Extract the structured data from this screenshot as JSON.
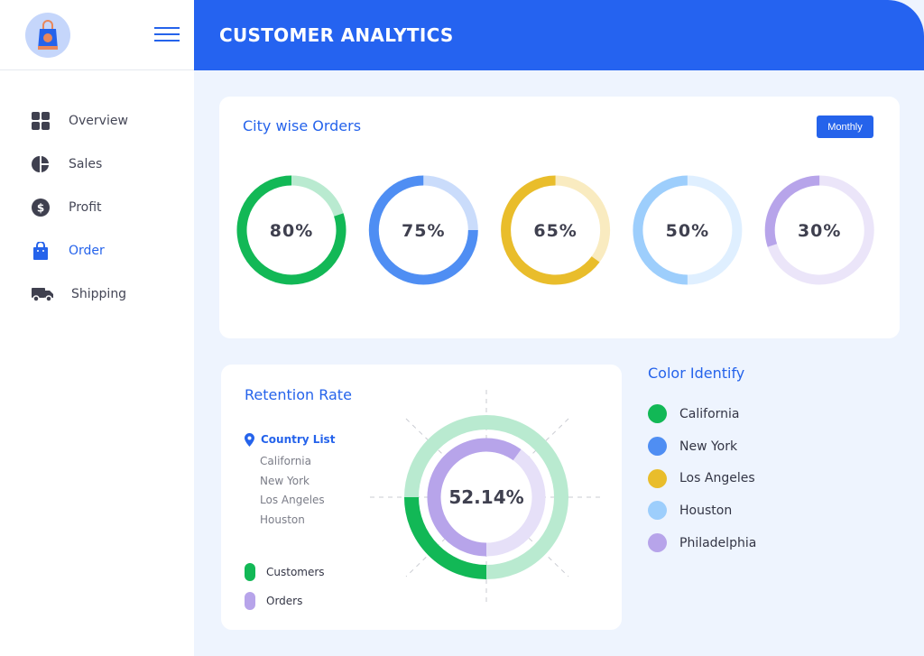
{
  "sidebar": {
    "items": [
      {
        "label": "Overview",
        "icon": "grid-icon"
      },
      {
        "label": "Sales",
        "icon": "pie-chart-icon"
      },
      {
        "label": "Profit",
        "icon": "dollar-icon"
      },
      {
        "label": "Order",
        "icon": "shopping-bag-icon",
        "active": true
      },
      {
        "label": "Shipping",
        "icon": "truck-icon"
      }
    ]
  },
  "header": {
    "title": "CUSTOMER ANALYTICS"
  },
  "city_orders": {
    "title": "City wise Orders",
    "period_button": "Monthly"
  },
  "retention": {
    "title": "Retention Rate",
    "country_list_label": "Country List",
    "countries": [
      "California",
      "New York",
      "Los Angeles",
      "Houston"
    ],
    "center_value": "52.14%",
    "legend": [
      {
        "label": "Customers",
        "color": "#12b856"
      },
      {
        "label": "Orders",
        "color": "#b7a4ea"
      }
    ]
  },
  "color_identify": {
    "title": "Color Identify",
    "items": [
      {
        "label": "California",
        "color": "#12b856"
      },
      {
        "label": "New York",
        "color": "#4f8ef3"
      },
      {
        "label": "Los Angeles",
        "color": "#e9bd2b"
      },
      {
        "label": "Houston",
        "color": "#9dcefc"
      },
      {
        "label": "Philadelphia",
        "color": "#b7a4ea"
      }
    ]
  },
  "chart_data": [
    {
      "type": "pie",
      "title": "City wise Orders",
      "categories": [
        "California",
        "New York",
        "Los Angeles",
        "Houston",
        "Philadelphia"
      ],
      "values": [
        80,
        75,
        65,
        50,
        30
      ],
      "labels": [
        "80%",
        "75%",
        "65%",
        "50%",
        "30%"
      ],
      "colors": [
        "#12b856",
        "#4f8ef3",
        "#e9bd2b",
        "#9dcefc",
        "#b7a4ea"
      ],
      "track_colors": [
        "#b9ead0",
        "#cadcfb",
        "#f9ebc0",
        "#dfefff",
        "#ebe5f9"
      ]
    },
    {
      "type": "pie",
      "title": "Retention Rate",
      "series": [
        {
          "name": "Customers",
          "value_pct": 25
        },
        {
          "name": "Orders",
          "value_pct": 60
        }
      ],
      "center_label": "52.14%"
    }
  ],
  "colors": {
    "accent": "#2563eb",
    "header": "#2563f0"
  }
}
